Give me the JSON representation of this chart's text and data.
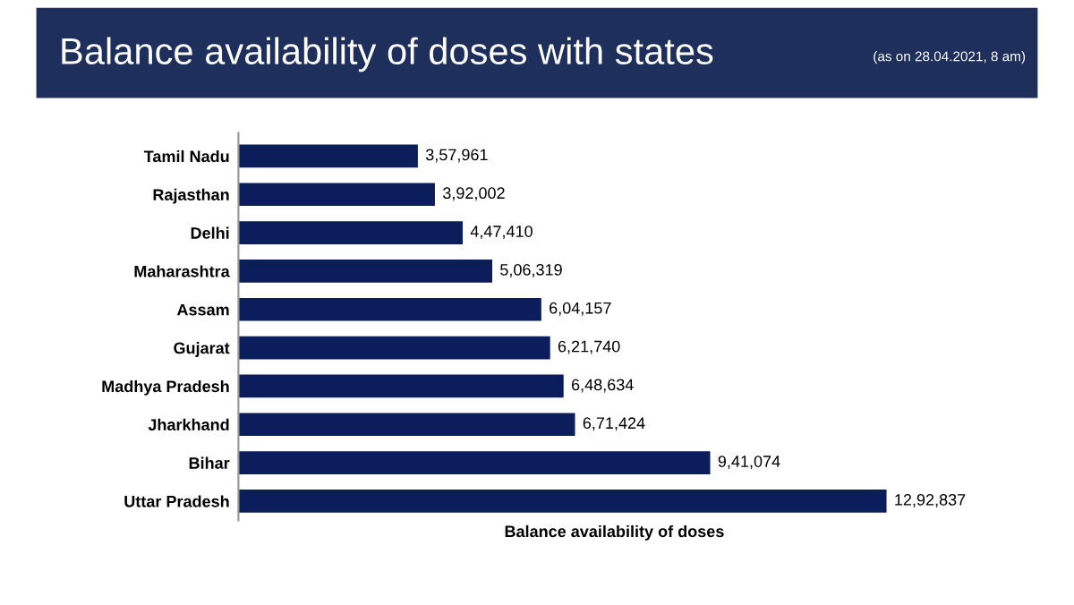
{
  "chart_data": {
    "type": "bar",
    "orientation": "horizontal",
    "title": "Balance availability of doses with states",
    "subtitle": "(as on 28.04.2021, 8 am)",
    "xlabel": "Balance availability of doses",
    "categories": [
      "Tamil Nadu",
      "Rajasthan",
      "Delhi",
      "Maharashtra",
      "Assam",
      "Gujarat",
      "Madhya Pradesh",
      "Jharkhand",
      "Bihar",
      "Uttar Pradesh"
    ],
    "values": [
      357961,
      392002,
      447410,
      506319,
      604157,
      621740,
      648634,
      671424,
      941074,
      1292837
    ],
    "value_labels": [
      "3,57,961",
      "3,92,002",
      "4,47,410",
      "5,06,319",
      "6,04,157",
      "6,21,740",
      "6,48,634",
      "6,71,424",
      "9,41,074",
      "12,92,837"
    ],
    "color": "#0b1d5a",
    "tick_labels": "y",
    "grid": false,
    "legend": false
  }
}
